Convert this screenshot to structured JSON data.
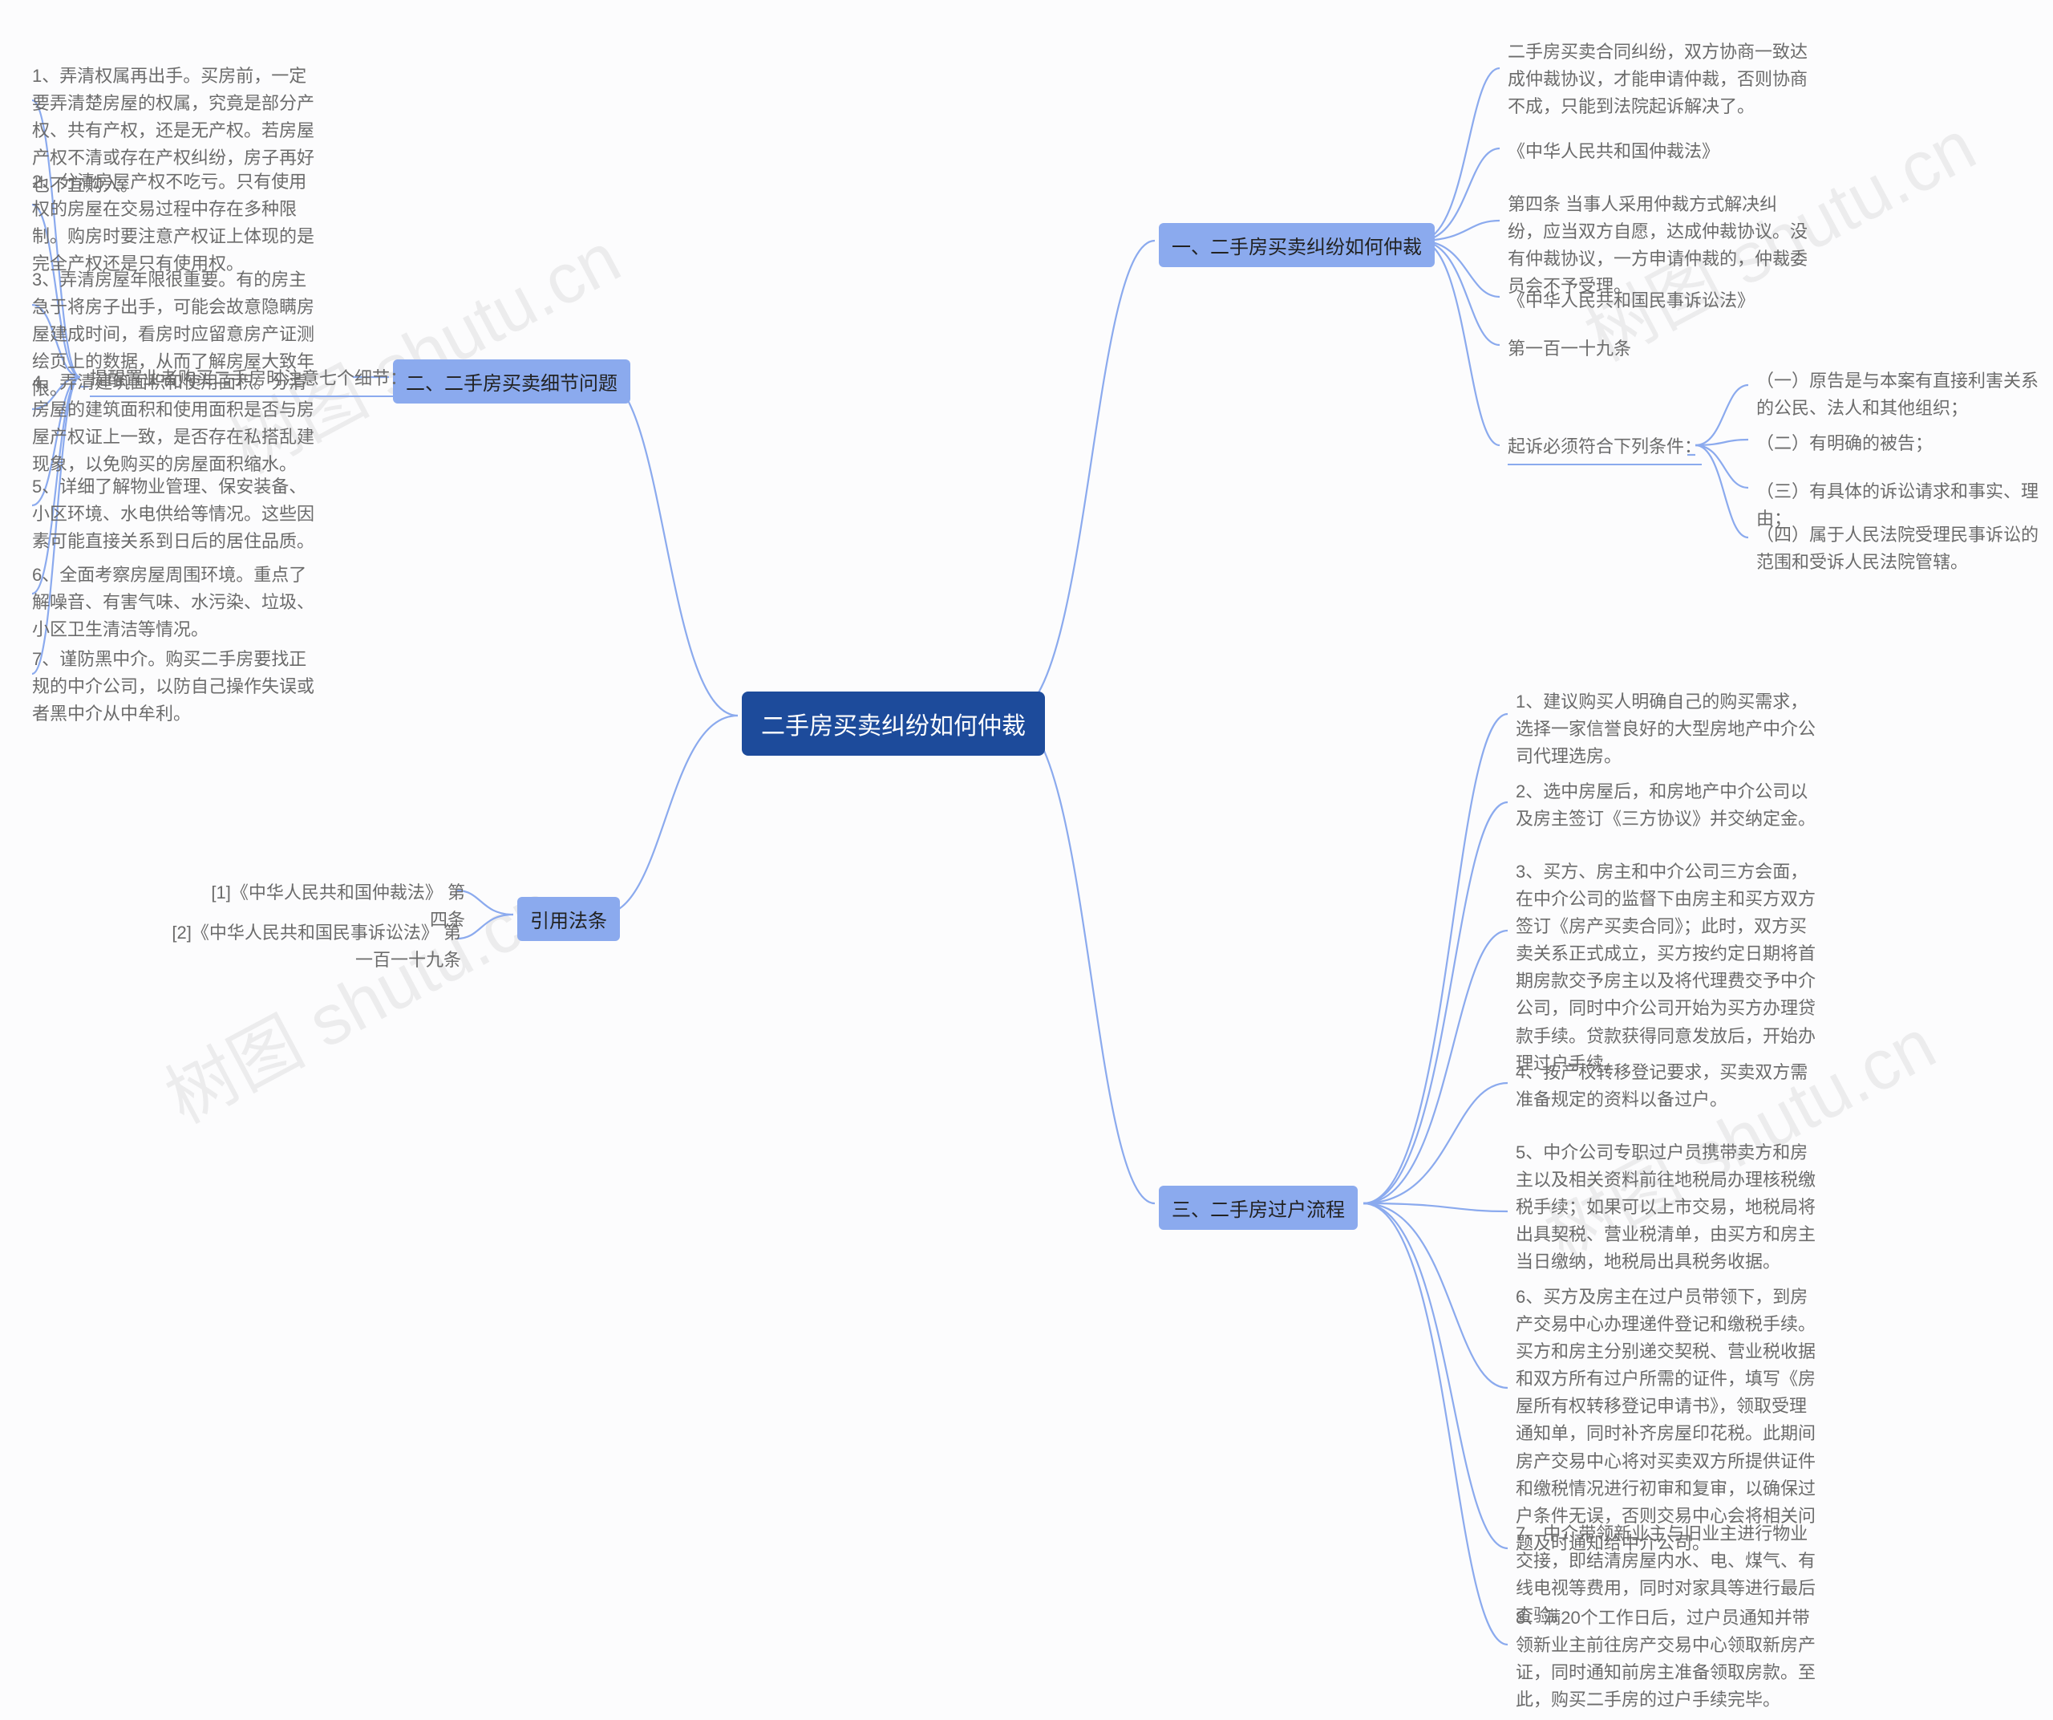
{
  "watermark": "树图 shutu.cn",
  "colors": {
    "root_bg": "#1d4b9b",
    "root_text": "#ffffff",
    "l1_bg": "#8baaee",
    "l1_text": "#222222",
    "leaf_text": "#6b6b6b",
    "link": "#8baaee",
    "page_bg": "#fcfcfd"
  },
  "root": {
    "label": "二手房买卖纠纷如何仲裁"
  },
  "branches_right": [
    {
      "key": "r1",
      "label": "一、二手房买卖纠纷如何仲裁",
      "children_simple": [
        "二手房买卖合同纠纷，双方协商一致达成仲裁协议，才能申请仲裁，否则协商不成，只能到法院起诉解决了。",
        "《中华人民共和国仲裁法》",
        "第四条 当事人采用仲裁方式解决纠纷，应当双方自愿，达成仲裁协议。没有仲裁协议，一方申请仲裁的，仲裁委员会不予受理。",
        "《中华人民共和国民事诉讼法》",
        "第一百一十九条"
      ],
      "subgroup": {
        "label": "起诉必须符合下列条件：",
        "items": [
          "（一）原告是与本案有直接利害关系的公民、法人和其他组织；",
          "（二）有明确的被告；",
          "（三）有具体的诉讼请求和事实、理由；",
          "（四）属于人民法院受理民事诉讼的范围和受诉人民法院管辖。"
        ]
      }
    },
    {
      "key": "r3",
      "label": "三、二手房过户流程",
      "children_simple": [
        "1、建议购买人明确自己的购买需求，选择一家信誉良好的大型房地产中介公司代理选房。",
        "2、选中房屋后，和房地产中介公司以及房主签订《三方协议》并交纳定金。",
        "3、买方、房主和中介公司三方会面，在中介公司的监督下由房主和买方双方签订《房产买卖合同》；此时，双方买卖关系正式成立，买方按约定日期将首期房款交予房主以及将代理费交予中介公司，同时中介公司开始为买方办理贷款手续。贷款获得同意发放后，开始办理过户手续。",
        "4、按产权转移登记要求，买卖双方需准备规定的资料以备过户。",
        "5、中介公司专职过户员携带卖方和房主以及相关资料前往地税局办理核税缴税手续；如果可以上市交易，地税局将出具契税、营业税清单，由买方和房主当日缴纳，地税局出具税务收据。",
        "6、买方及房主在过户员带领下，到房产交易中心办理递件登记和缴税手续。买方和房主分别递交契税、营业税收据和双方所有过户所需的证件，填写《房屋所有权转移登记申请书》，领取受理通知单，同时补齐房屋印花税。此期间房产交易中心将对买卖双方所提供证件和缴税情况进行初审和复审，以确保过户条件无误，否则交易中心会将相关问题及时通知给中介公司。",
        "7、中介带领新业主与旧业主进行物业交接，即结清房屋内水、电、煤气、有线电视等费用，同时对家具等进行最后查验。",
        "8、满20个工作日后，过户员通知并带领新业主前往房产交易中心领取新房产证，同时通知前房主准备领取房款。至此，购买二手房的过户手续完毕。"
      ]
    }
  ],
  "branches_left": [
    {
      "key": "l2",
      "label": "二、二手房买卖细节问题",
      "intermediate": "提醒置业者购买二手房时注意七个细节：",
      "children_simple": [
        "1、弄清权属再出手。买房前，一定要弄清楚房屋的权属，究竟是部分产权、共有产权，还是无产权。若房屋产权不清或存在产权纠纷，房子再好也不宜购入。",
        "2、分清房屋产权不吃亏。只有使用权的房屋在交易过程中存在多种限制。购房时要注意产权证上体现的是完全产权还是只有使用权。",
        "3、弄清房屋年限很重要。有的房主急于将房子出手，可能会故意隐瞒房屋建成时间，看房时应留意房产证测绘页上的数据，从而了解房屋大致年限。",
        "4、弄清建筑面积和使用面积。分清房屋的建筑面积和使用面积是否与房屋产权证上一致，是否存在私搭乱建现象，以免购买的房屋面积缩水。",
        "5、详细了解物业管理、保安装备、小区环境、水电供给等情况。这些因素可能直接关系到日后的居住品质。",
        "6、全面考察房屋周围环境。重点了解噪音、有害气味、水污染、垃圾、小区卫生清洁等情况。",
        "7、谨防黑中介。购买二手房要找正规的中介公司，以防自己操作失误或者黑中介从中牟利。"
      ]
    },
    {
      "key": "lref",
      "label": "引用法条",
      "children_simple": [
        "[1]《中华人民共和国仲裁法》 第四条",
        "[2]《中华人民共和国民事诉讼法》 第一百一十九条"
      ]
    }
  ]
}
